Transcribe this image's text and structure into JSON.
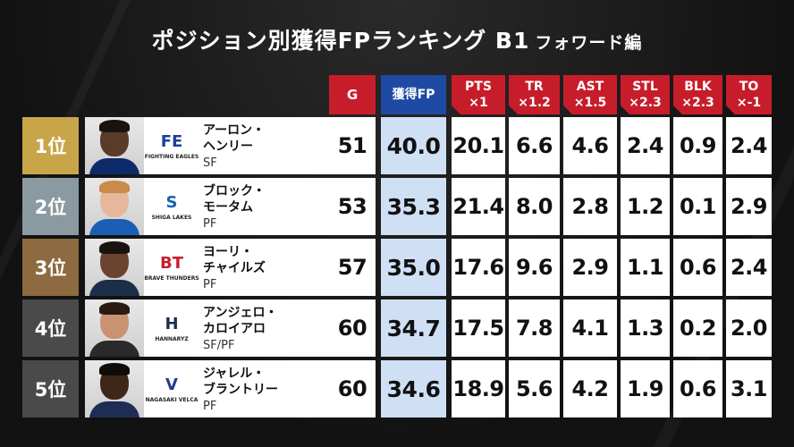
{
  "title": {
    "main": "ポジション別獲得FPランキング B1",
    "sub": "フォワード編"
  },
  "headers": {
    "g": "G",
    "fp": "獲得FP",
    "pts": [
      "PTS",
      "×1"
    ],
    "tr": [
      "TR",
      "×1.2"
    ],
    "ast": [
      "AST",
      "×1.5"
    ],
    "stl": [
      "STL",
      "×2.3"
    ],
    "blk": [
      "BLK",
      "×2.3"
    ],
    "to": [
      "TO",
      "×-1"
    ]
  },
  "colors": {
    "header_red": "#c71d2a",
    "header_blue": "#1f4aa3",
    "fp_column": "#cfe0f5",
    "rank1": "#c9a54a",
    "rank2": "#8a9aa0",
    "rank3": "#8d6a3f",
    "rank4": "#4a4a4a",
    "rank5": "#4a4a4a"
  },
  "players": [
    {
      "rank": "1位",
      "name_line1": "アーロン・",
      "name_line2": "ヘンリー",
      "position": "SF",
      "team_logo": "fighting-eagles-logo",
      "team_caption": "FIGHTING EAGLES",
      "g": "51",
      "fp": "40.0",
      "pts": "20.1",
      "tr": "6.6",
      "ast": "4.6",
      "stl": "2.4",
      "blk": "0.9",
      "to": "2.4"
    },
    {
      "rank": "2位",
      "name_line1": "ブロック・",
      "name_line2": "モータム",
      "position": "PF",
      "team_logo": "shiga-lakes-logo",
      "team_caption": "SHIGA LAKES",
      "g": "53",
      "fp": "35.3",
      "pts": "21.4",
      "tr": "8.0",
      "ast": "2.8",
      "stl": "1.2",
      "blk": "0.1",
      "to": "2.9"
    },
    {
      "rank": "3位",
      "name_line1": "ヨーリ・",
      "name_line2": "チャイルズ",
      "position": "PF",
      "team_logo": "brave-thunders-logo",
      "team_caption": "BRAVE THUNDERS",
      "g": "57",
      "fp": "35.0",
      "pts": "17.6",
      "tr": "9.6",
      "ast": "2.9",
      "stl": "1.1",
      "blk": "0.6",
      "to": "2.4"
    },
    {
      "rank": "4位",
      "name_line1": "アンジェロ・",
      "name_line2": "カロイアロ",
      "position": "SF/PF",
      "team_logo": "hannaryz-logo",
      "team_caption": "HANNARYZ",
      "g": "60",
      "fp": "34.7",
      "pts": "17.5",
      "tr": "7.8",
      "ast": "4.1",
      "stl": "1.3",
      "blk": "0.2",
      "to": "2.0"
    },
    {
      "rank": "5位",
      "name_line1": "ジャレル・",
      "name_line2": "ブラントリー",
      "position": "PF",
      "team_logo": "velca-logo",
      "team_caption": "NAGASAKI VELCA",
      "g": "60",
      "fp": "34.6",
      "pts": "18.9",
      "tr": "5.6",
      "ast": "4.2",
      "stl": "1.9",
      "blk": "0.6",
      "to": "3.1"
    }
  ]
}
